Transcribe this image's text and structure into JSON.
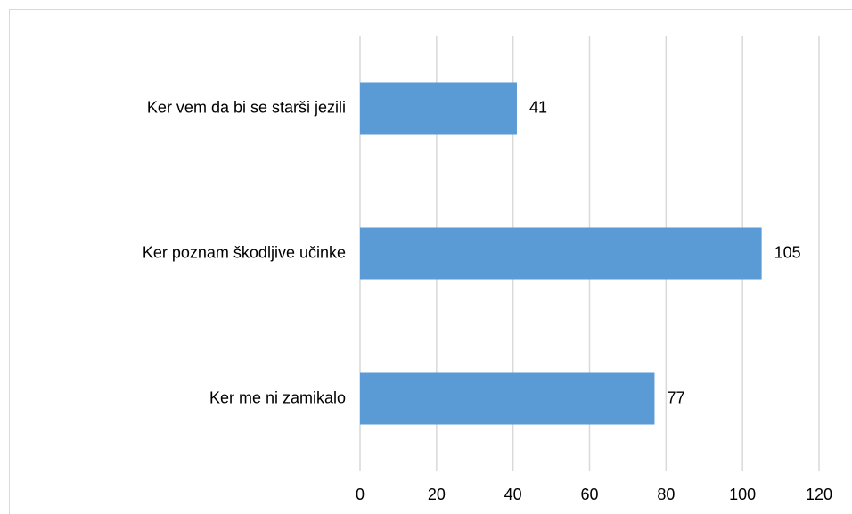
{
  "chart_data": {
    "type": "hbar",
    "categories": [
      "Ker vem da bi se starši jezili",
      "Ker poznam škodljive učinke",
      "Ker me ni zamikalo"
    ],
    "values": [
      41,
      105,
      77
    ],
    "color": "#5b9bd5",
    "xlim": [
      0,
      120
    ],
    "xticks": [
      0,
      20,
      40,
      60,
      80,
      100,
      120
    ],
    "grid": true
  }
}
